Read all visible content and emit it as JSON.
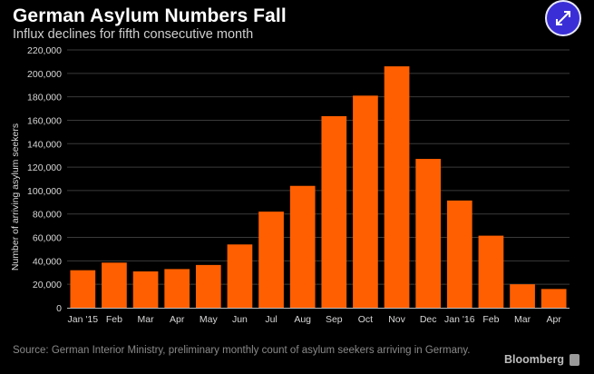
{
  "header": {
    "title": "German Asylum Numbers Fall",
    "subtitle": "Influx declines for fifth consecutive month"
  },
  "toolbar": {
    "expand_icon": "expand-arrows-icon"
  },
  "footer": {
    "source": "Source: German Interior Ministry, preliminary monthly count of asylum seekers arriving in Germany.",
    "brand": "Bloomberg",
    "brand_icon": "bloomberg-logo-icon"
  },
  "colors": {
    "bar": "#ff5f00",
    "background": "#000000",
    "grid": "#3a3a3a",
    "accent_button": "#3a2fd6"
  },
  "chart_data": {
    "type": "bar",
    "title": "German Asylum Numbers Fall",
    "subtitle": "Influx declines for fifth consecutive month",
    "xlabel": "",
    "ylabel": "Number of arriving asylum seekers",
    "categories": [
      "Jan '15",
      "Feb",
      "Mar",
      "Apr",
      "May",
      "Jun",
      "Jul",
      "Aug",
      "Sep",
      "Oct",
      "Nov",
      "Dec",
      "Jan '16",
      "Feb",
      "Mar",
      "Apr"
    ],
    "values": [
      32000,
      38500,
      31000,
      33000,
      36500,
      54000,
      82000,
      104000,
      163500,
      181000,
      206000,
      127000,
      91500,
      61500,
      20000,
      16000
    ],
    "ylim": [
      0,
      220000
    ],
    "yticks": [
      0,
      20000,
      40000,
      60000,
      80000,
      100000,
      120000,
      140000,
      160000,
      180000,
      200000,
      220000
    ],
    "ytick_labels": [
      "0",
      "20,000",
      "40,000",
      "60,000",
      "80,000",
      "100,000",
      "120,000",
      "140,000",
      "160,000",
      "180,000",
      "200,000",
      "220,000"
    ],
    "grid": true,
    "legend": "none"
  }
}
